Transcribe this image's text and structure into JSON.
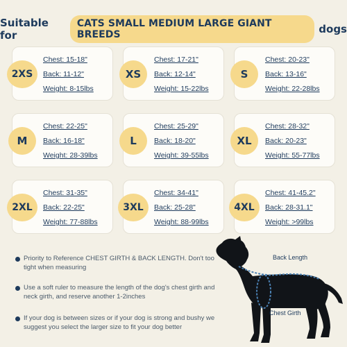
{
  "header": {
    "prefix": "Suitable for",
    "highlight": "CATS SMALL MEDIUM LARGE GIANT BREEDS",
    "suffix": "dogs"
  },
  "sizes": [
    {
      "size": "2XS",
      "chest": "Chest: 15-18\"",
      "back": "Back: 11-12\"",
      "weight": "Weight: 8-15lbs"
    },
    {
      "size": "XS",
      "chest": "Chest: 17-21\"",
      "back": "Back: 12-14\"",
      "weight": "Weight: 15-22lbs"
    },
    {
      "size": "S",
      "chest": "Chest: 20-23\"",
      "back": "Back: 13-16\"",
      "weight": "Weight: 22-28lbs"
    },
    {
      "size": "M",
      "chest": "Chest: 22-25\"",
      "back": "Back: 16-18\"",
      "weight": "Weight: 28-39lbs"
    },
    {
      "size": "L",
      "chest": "Chest: 25-29\"",
      "back": "Back: 18-20\"",
      "weight": "Weight: 39-55lbs"
    },
    {
      "size": "XL",
      "chest": "Chest: 28-32\"",
      "back": "Back: 20-23\"",
      "weight": "Weight: 55-77lbs"
    },
    {
      "size": "2XL",
      "chest": "Chest: 31-35\"",
      "back": "Back: 22-25\"",
      "weight": "Weight: 77-88lbs"
    },
    {
      "size": "3XL",
      "chest": "Chest: 34-41\"",
      "back": "Back: 25-28\"",
      "weight": "Weight: 88-99lbs"
    },
    {
      "size": "4XL",
      "chest": "Chest: 41-45.2\"",
      "back": "Back: 28-31.1\"",
      "weight": "Weight: >99lbs"
    }
  ],
  "notes": [
    "Priority to Reference CHEST GIRTH & BACK LENGTH. Don't too tight when measuring",
    "Use a soft ruler to measure the length of the dog's chest girth and neck girth, and reserve another 1-2inches",
    "If your dog is between sizes or if your dog is strong and bushy we suggest you select the larger size to fit your dog better"
  ],
  "diagram": {
    "back_length_label": "Back Length",
    "chest_girth_label": "Chest Girth"
  },
  "colors": {
    "background": "#f3f0e6",
    "accent": "#f6d98c",
    "text": "#1d3a5c",
    "measure_line": "#4a7fb0"
  }
}
